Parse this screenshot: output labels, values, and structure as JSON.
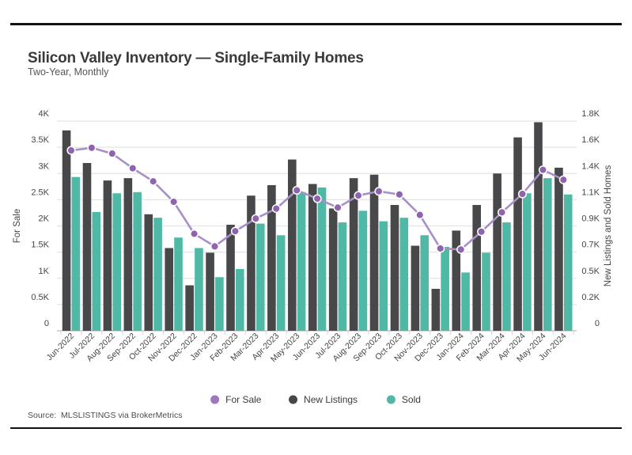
{
  "page": {
    "title": "Silicon Valley Inventory — Single-Family Homes",
    "subtitle": "Two-Year, Monthly",
    "source": "Source:  MLSLISTINGS via BrokerMetrics"
  },
  "colors": {
    "for_sale_line": "#a78fc7",
    "for_sale_marker": "#8f63ad",
    "new_listings_bar": "#48484a",
    "sold_bar": "#4fb9a5",
    "gridline": "#e4e4e6",
    "baseline": "#c8c8c8",
    "tick_mark": "#d4d4d4",
    "text": "#454545",
    "rule": "#121212"
  },
  "legend": {
    "items": [
      {
        "label": "For Sale",
        "color": "#9e77bd"
      },
      {
        "label": "New Listings",
        "color": "#48484a"
      },
      {
        "label": "Sold",
        "color": "#4fb9a5"
      }
    ]
  },
  "chart_data": {
    "type": "combo_bar_line",
    "title": "Silicon Valley Inventory — Single-Family Homes",
    "subtitle": "Two-Year, Monthly",
    "grid": true,
    "legend_position": "bottom",
    "categories": [
      "Jun-2022",
      "Jul-2022",
      "Aug-2022",
      "Sep-2022",
      "Oct-2022",
      "Nov-2022",
      "Dec-2022",
      "Jan-2023",
      "Feb-2023",
      "Mar-2023",
      "Apr-2023",
      "May-2023",
      "Jun-2023",
      "Jul-2023",
      "Aug-2023",
      "Sep-2023",
      "Oct-2023",
      "Nov-2023",
      "Dec-2023",
      "Jan-2024",
      "Feb-2024",
      "Mar-2024",
      "Apr-2024",
      "May-2024",
      "Jun-2024"
    ],
    "left_axis": {
      "title": "For Sale",
      "range": [
        0,
        4000
      ],
      "tick_labels": [
        "0",
        "0.5K",
        "1K",
        "1.5K",
        "2K",
        "2.5K",
        "3K",
        "3.5K",
        "4K"
      ]
    },
    "right_axis": {
      "title": "New Listings and Sold Homes",
      "range": [
        0,
        1800
      ],
      "tick_labels": [
        "0",
        "0.2K",
        "0.5K",
        "0.7K",
        "0.9K",
        "1.1K",
        "1.4K",
        "1.6K",
        "1.8K"
      ]
    },
    "series": [
      {
        "name": "For Sale",
        "type": "line",
        "axis": "left",
        "values": [
          3440,
          3490,
          3380,
          3100,
          2850,
          2460,
          1850,
          1610,
          1900,
          2140,
          2330,
          2680,
          2520,
          2350,
          2580,
          2660,
          2600,
          2210,
          1570,
          1550,
          1890,
          2260,
          2610,
          3070,
          2880
        ]
      },
      {
        "name": "New Listings",
        "type": "bar",
        "axis": "right",
        "values": [
          1720,
          1440,
          1290,
          1310,
          1000,
          710,
          390,
          670,
          910,
          1160,
          1250,
          1470,
          1260,
          1050,
          1310,
          1340,
          1080,
          730,
          360,
          860,
          1080,
          1350,
          1660,
          1790,
          1400
        ]
      },
      {
        "name": "Sold",
        "type": "bar",
        "axis": "right",
        "values": [
          1320,
          1020,
          1180,
          1190,
          970,
          800,
          710,
          460,
          530,
          920,
          820,
          1190,
          1230,
          930,
          1030,
          940,
          970,
          820,
          720,
          500,
          670,
          930,
          1180,
          1310,
          1170
        ]
      }
    ]
  }
}
